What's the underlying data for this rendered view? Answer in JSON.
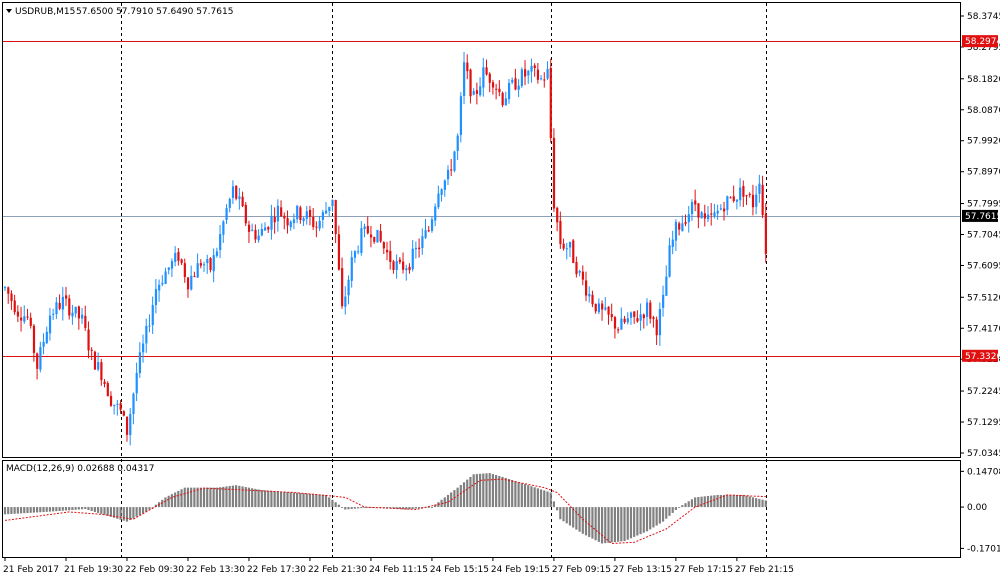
{
  "header": {
    "symbol_label": "USDRUB,M15",
    "ohlc_label": "57.6500 57.7910 57.6490 57.7615"
  },
  "macd_panel": {
    "label": "MACD(12,26,9) 0.02688 0.04317"
  },
  "colors": {
    "bull": "#1e90ff",
    "bear": "#e01010",
    "level_line": "#e01010",
    "current_line": "#8ca0b8",
    "macd_hist": "#808080",
    "macd_signal": "#e01010"
  },
  "chart_data": [
    {
      "type": "candlestick",
      "symbol": "USDRUB",
      "timeframe": "M15",
      "ylim": [
        57.0345,
        58.3745
      ],
      "y_ticks": [
        "58.3745",
        "58.2795",
        "58.1820",
        "58.0870",
        "57.9920",
        "57.8970",
        "57.7995",
        "57.7045",
        "57.6095",
        "57.5120",
        "57.4170",
        "57.3220",
        "57.2245",
        "57.1295",
        "57.0345"
      ],
      "x_ticks": [
        "21 Feb 2017",
        "21 Feb 19:30",
        "22 Feb 09:30",
        "22 Feb 13:30",
        "22 Feb 17:30",
        "22 Feb 21:30",
        "24 Feb 11:15",
        "24 Feb 15:15",
        "24 Feb 19:15",
        "27 Feb 09:15",
        "27 Feb 13:15",
        "27 Feb 17:15",
        "27 Feb 21:15"
      ],
      "price_levels": [
        {
          "label": "58.2974",
          "value": 58.2974,
          "color": "#e01010"
        },
        {
          "label": "57.3326",
          "value": 57.3326,
          "color": "#e01010"
        }
      ],
      "current_price": {
        "label": "57.7615",
        "value": 57.7615
      },
      "anchors": [
        [
          0,
          57.54
        ],
        [
          4,
          57.47
        ],
        [
          7,
          57.45
        ],
        [
          10,
          57.3
        ],
        [
          14,
          57.46
        ],
        [
          18,
          57.5
        ],
        [
          24,
          57.44
        ],
        [
          27,
          57.33
        ],
        [
          30,
          57.28
        ],
        [
          33,
          57.2
        ],
        [
          36,
          57.16
        ],
        [
          38,
          57.1
        ],
        [
          41,
          57.28
        ],
        [
          44,
          57.4
        ],
        [
          47,
          57.54
        ],
        [
          50,
          57.59
        ],
        [
          54,
          57.64
        ],
        [
          57,
          57.56
        ],
        [
          61,
          57.62
        ],
        [
          64,
          57.6
        ],
        [
          66,
          57.66
        ],
        [
          69,
          57.78
        ],
        [
          71,
          57.84
        ],
        [
          73,
          57.8
        ],
        [
          76,
          57.72
        ],
        [
          79,
          57.7
        ],
        [
          82,
          57.74
        ],
        [
          85,
          57.78
        ],
        [
          88,
          57.75
        ],
        [
          91,
          57.77
        ],
        [
          94,
          57.76
        ],
        [
          97,
          57.73
        ],
        [
          100,
          57.78
        ],
        [
          102,
          57.82
        ],
        [
          105,
          57.47
        ],
        [
          108,
          57.62
        ],
        [
          111,
          57.7
        ],
        [
          114,
          57.72
        ],
        [
          117,
          57.68
        ],
        [
          120,
          57.63
        ],
        [
          123,
          57.6
        ],
        [
          126,
          57.62
        ],
        [
          129,
          57.67
        ],
        [
          132,
          57.72
        ],
        [
          135,
          57.85
        ],
        [
          138,
          57.88
        ],
        [
          141,
          58.0
        ],
        [
          143,
          58.22
        ],
        [
          146,
          58.12
        ],
        [
          149,
          58.2
        ],
        [
          152,
          58.18
        ],
        [
          155,
          58.12
        ],
        [
          158,
          58.16
        ],
        [
          161,
          58.19
        ],
        [
          164,
          58.2
        ],
        [
          167,
          58.18
        ],
        [
          169,
          58.2
        ],
        [
          171,
          57.8
        ],
        [
          173,
          57.68
        ],
        [
          176,
          57.66
        ],
        [
          179,
          57.58
        ],
        [
          182,
          57.52
        ],
        [
          185,
          57.47
        ],
        [
          188,
          57.45
        ],
        [
          191,
          57.42
        ],
        [
          194,
          57.44
        ],
        [
          197,
          57.45
        ],
        [
          200,
          57.48
        ],
        [
          203,
          57.42
        ],
        [
          205,
          57.5
        ],
        [
          207,
          57.65
        ],
        [
          209,
          57.72
        ],
        [
          212,
          57.76
        ],
        [
          215,
          57.8
        ],
        [
          218,
          57.74
        ],
        [
          221,
          57.76
        ],
        [
          224,
          57.8
        ],
        [
          227,
          57.82
        ],
        [
          230,
          57.84
        ],
        [
          233,
          57.8
        ],
        [
          235,
          57.88
        ],
        [
          237,
          57.66
        ]
      ],
      "bar_count": 238,
      "session_breaks": [
        "21 Feb 22:00",
        "22 Feb 21:30",
        "24 Feb 21:15",
        "27 Feb 21:15"
      ]
    },
    {
      "type": "histogram_with_signal",
      "indicator": "MACD",
      "params": [
        12,
        26,
        9
      ],
      "main_value": 0.02688,
      "signal_value": 0.04317,
      "ylim": [
        -0.185,
        0.165
      ],
      "y_ticks": [
        "0.14708",
        "0.00",
        "-0.17016"
      ],
      "hist_anchors": [
        [
          0,
          -0.03
        ],
        [
          15,
          -0.018
        ],
        [
          25,
          -0.008
        ],
        [
          33,
          -0.04
        ],
        [
          38,
          -0.06
        ],
        [
          44,
          -0.02
        ],
        [
          50,
          0.04
        ],
        [
          56,
          0.08
        ],
        [
          66,
          0.08
        ],
        [
          72,
          0.09
        ],
        [
          80,
          0.07
        ],
        [
          90,
          0.06
        ],
        [
          100,
          0.05
        ],
        [
          106,
          -0.01
        ],
        [
          115,
          0.0
        ],
        [
          125,
          -0.01
        ],
        [
          133,
          0.0
        ],
        [
          141,
          0.08
        ],
        [
          146,
          0.135
        ],
        [
          151,
          0.14
        ],
        [
          156,
          0.12
        ],
        [
          163,
          0.09
        ],
        [
          170,
          0.06
        ],
        [
          173,
          -0.05
        ],
        [
          180,
          -0.11
        ],
        [
          186,
          -0.15
        ],
        [
          193,
          -0.14
        ],
        [
          200,
          -0.1
        ],
        [
          205,
          -0.06
        ],
        [
          210,
          0.0
        ],
        [
          215,
          0.04
        ],
        [
          222,
          0.05
        ],
        [
          230,
          0.05
        ],
        [
          237,
          0.027
        ]
      ],
      "signal_anchors": [
        [
          0,
          -0.055
        ],
        [
          20,
          -0.02
        ],
        [
          30,
          -0.03
        ],
        [
          40,
          -0.05
        ],
        [
          52,
          0.04
        ],
        [
          62,
          0.078
        ],
        [
          75,
          0.07
        ],
        [
          90,
          0.06
        ],
        [
          106,
          0.04
        ],
        [
          112,
          0.0
        ],
        [
          128,
          -0.01
        ],
        [
          138,
          0.02
        ],
        [
          148,
          0.11
        ],
        [
          155,
          0.115
        ],
        [
          168,
          0.08
        ],
        [
          172,
          0.06
        ],
        [
          180,
          -0.05
        ],
        [
          189,
          -0.15
        ],
        [
          196,
          -0.145
        ],
        [
          206,
          -0.09
        ],
        [
          215,
          0.0
        ],
        [
          225,
          0.05
        ],
        [
          237,
          0.043
        ]
      ]
    }
  ]
}
